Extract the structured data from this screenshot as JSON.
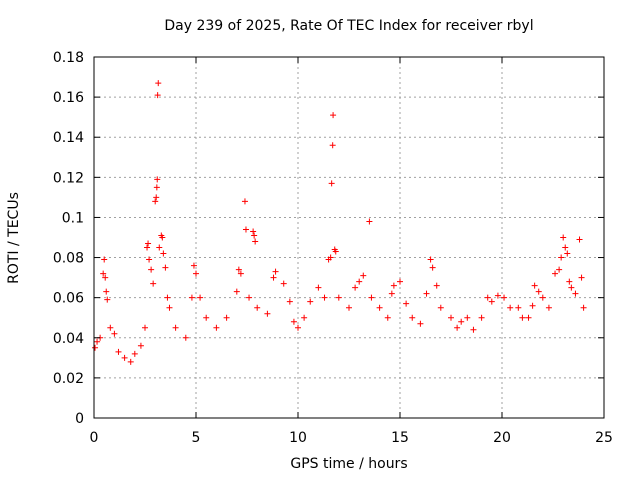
{
  "chart_data": {
    "type": "scatter",
    "title": "Day 239 of 2025, Rate Of TEC Index for receiver rbyl",
    "xlabel": "GPS time / hours",
    "ylabel": "ROTI / TECUs",
    "xlim": [
      0,
      25
    ],
    "ylim": [
      0,
      0.18
    ],
    "xticks": [
      "0",
      "5",
      "10",
      "15",
      "20",
      "25"
    ],
    "yticks": [
      "0",
      "0.02",
      "0.04",
      "0.06",
      "0.08",
      "0.1",
      "0.12",
      "0.14",
      "0.16",
      "0.18"
    ],
    "grid": true,
    "marker": "+",
    "color": "#ff0000",
    "series": [
      {
        "points": [
          [
            0.05,
            0.035
          ],
          [
            0.15,
            0.038
          ],
          [
            0.3,
            0.04
          ],
          [
            0.45,
            0.072
          ],
          [
            0.5,
            0.079
          ],
          [
            0.55,
            0.07
          ],
          [
            0.6,
            0.063
          ],
          [
            0.65,
            0.059
          ],
          [
            0.8,
            0.045
          ],
          [
            1.0,
            0.042
          ],
          [
            1.2,
            0.033
          ],
          [
            1.5,
            0.03
          ],
          [
            1.8,
            0.028
          ],
          [
            2.0,
            0.032
          ],
          [
            2.3,
            0.036
          ],
          [
            2.5,
            0.045
          ],
          [
            2.6,
            0.085
          ],
          [
            2.65,
            0.087
          ],
          [
            2.7,
            0.079
          ],
          [
            2.8,
            0.074
          ],
          [
            2.9,
            0.067
          ],
          [
            3.0,
            0.108
          ],
          [
            3.05,
            0.11
          ],
          [
            3.08,
            0.115
          ],
          [
            3.1,
            0.119
          ],
          [
            3.12,
            0.161
          ],
          [
            3.15,
            0.167
          ],
          [
            3.2,
            0.085
          ],
          [
            3.3,
            0.091
          ],
          [
            3.35,
            0.09
          ],
          [
            3.4,
            0.082
          ],
          [
            3.5,
            0.075
          ],
          [
            3.6,
            0.06
          ],
          [
            3.7,
            0.055
          ],
          [
            4.0,
            0.045
          ],
          [
            4.5,
            0.04
          ],
          [
            4.8,
            0.06
          ],
          [
            4.9,
            0.076
          ],
          [
            5.0,
            0.072
          ],
          [
            5.2,
            0.06
          ],
          [
            5.5,
            0.05
          ],
          [
            6.0,
            0.045
          ],
          [
            6.5,
            0.05
          ],
          [
            7.0,
            0.063
          ],
          [
            7.1,
            0.074
          ],
          [
            7.2,
            0.072
          ],
          [
            7.4,
            0.108
          ],
          [
            7.45,
            0.094
          ],
          [
            7.6,
            0.06
          ],
          [
            7.8,
            0.093
          ],
          [
            7.85,
            0.091
          ],
          [
            7.9,
            0.088
          ],
          [
            8.0,
            0.055
          ],
          [
            8.5,
            0.052
          ],
          [
            8.8,
            0.07
          ],
          [
            8.9,
            0.073
          ],
          [
            9.3,
            0.067
          ],
          [
            9.6,
            0.058
          ],
          [
            9.8,
            0.048
          ],
          [
            10.0,
            0.045
          ],
          [
            10.3,
            0.05
          ],
          [
            10.6,
            0.058
          ],
          [
            11.0,
            0.065
          ],
          [
            11.3,
            0.06
          ],
          [
            11.5,
            0.079
          ],
          [
            11.6,
            0.08
          ],
          [
            11.65,
            0.117
          ],
          [
            11.7,
            0.136
          ],
          [
            11.72,
            0.151
          ],
          [
            11.8,
            0.084
          ],
          [
            11.85,
            0.083
          ],
          [
            12.0,
            0.06
          ],
          [
            12.5,
            0.055
          ],
          [
            12.8,
            0.065
          ],
          [
            13.0,
            0.068
          ],
          [
            13.2,
            0.071
          ],
          [
            13.5,
            0.098
          ],
          [
            13.6,
            0.06
          ],
          [
            14.0,
            0.055
          ],
          [
            14.4,
            0.05
          ],
          [
            14.6,
            0.062
          ],
          [
            14.7,
            0.066
          ],
          [
            15.0,
            0.068
          ],
          [
            15.3,
            0.057
          ],
          [
            15.6,
            0.05
          ],
          [
            16.0,
            0.047
          ],
          [
            16.3,
            0.062
          ],
          [
            16.5,
            0.079
          ],
          [
            16.6,
            0.075
          ],
          [
            16.8,
            0.066
          ],
          [
            17.0,
            0.055
          ],
          [
            17.5,
            0.05
          ],
          [
            17.8,
            0.045
          ],
          [
            18.0,
            0.048
          ],
          [
            18.3,
            0.05
          ],
          [
            18.6,
            0.044
          ],
          [
            19.0,
            0.05
          ],
          [
            19.3,
            0.06
          ],
          [
            19.5,
            0.058
          ],
          [
            19.8,
            0.061
          ],
          [
            20.1,
            0.06
          ],
          [
            20.4,
            0.055
          ],
          [
            20.8,
            0.055
          ],
          [
            21.0,
            0.05
          ],
          [
            21.3,
            0.05
          ],
          [
            21.5,
            0.056
          ],
          [
            21.6,
            0.066
          ],
          [
            21.8,
            0.063
          ],
          [
            22.0,
            0.06
          ],
          [
            22.3,
            0.055
          ],
          [
            22.6,
            0.072
          ],
          [
            22.8,
            0.074
          ],
          [
            22.9,
            0.08
          ],
          [
            23.0,
            0.09
          ],
          [
            23.1,
            0.085
          ],
          [
            23.2,
            0.082
          ],
          [
            23.3,
            0.068
          ],
          [
            23.4,
            0.065
          ],
          [
            23.6,
            0.062
          ],
          [
            23.8,
            0.089
          ],
          [
            23.9,
            0.07
          ],
          [
            24.0,
            0.055
          ]
        ]
      }
    ]
  }
}
